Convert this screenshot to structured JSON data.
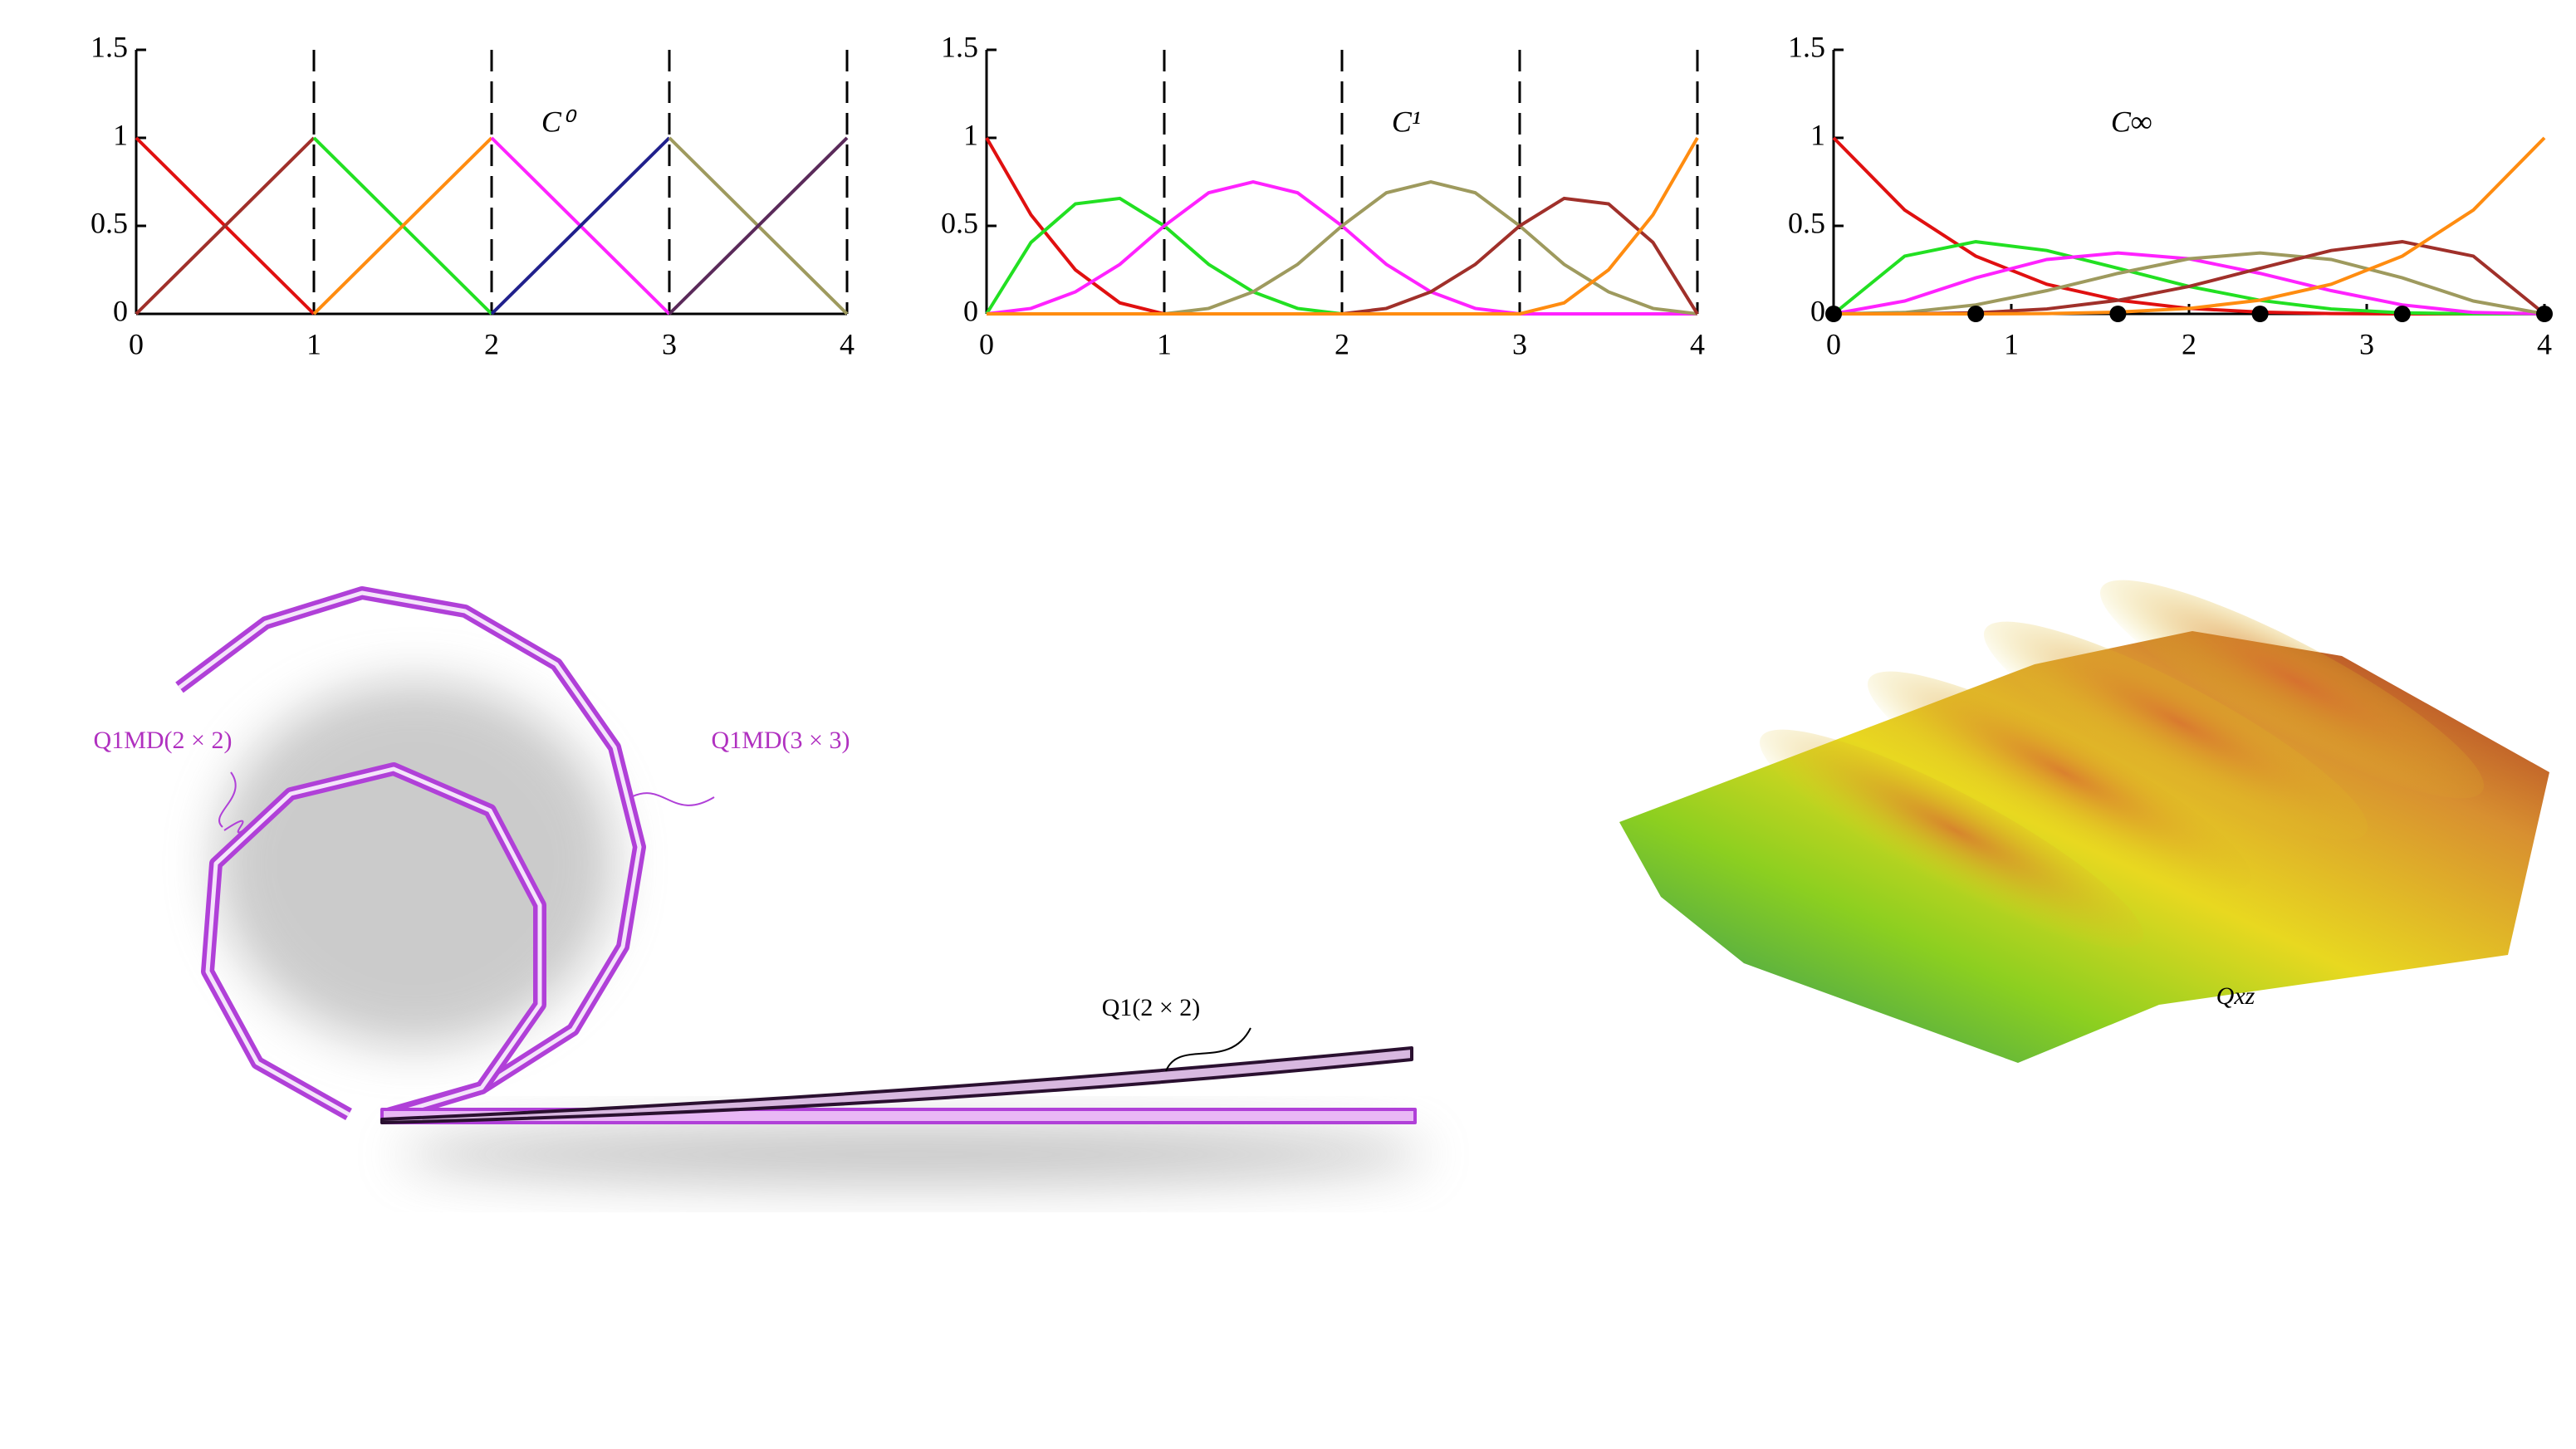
{
  "chart_data": [
    {
      "type": "line",
      "annotation": "C⁰",
      "x": [
        0,
        1,
        2,
        3,
        4
      ],
      "xlim": [
        0,
        4
      ],
      "ylim": [
        0,
        1.5
      ],
      "xticks": [
        0,
        1,
        2,
        3,
        4
      ],
      "yticks": [
        0,
        0.5,
        1,
        1.5
      ],
      "vlines": [
        1,
        2,
        3,
        4
      ],
      "series": [
        {
          "color": "#e01010",
          "values": [
            1,
            0,
            null,
            null,
            null
          ]
        },
        {
          "color": "#a0302a",
          "values": [
            0,
            1,
            null,
            null,
            null
          ]
        },
        {
          "color": "#22e022",
          "values": [
            null,
            1,
            0,
            null,
            null
          ]
        },
        {
          "color": "#ff8c10",
          "values": [
            null,
            0,
            1,
            null,
            null
          ]
        },
        {
          "color": "#ff22ff",
          "values": [
            null,
            null,
            1,
            0,
            null
          ]
        },
        {
          "color": "#20208c",
          "values": [
            null,
            null,
            0,
            1,
            null
          ]
        },
        {
          "color": "#9e9a5e",
          "values": [
            null,
            null,
            null,
            1,
            0
          ]
        },
        {
          "color": "#5a2a5a",
          "values": [
            null,
            null,
            null,
            0,
            1
          ]
        }
      ]
    },
    {
      "type": "line",
      "annotation": "C¹",
      "x": [
        0,
        0.25,
        0.5,
        0.75,
        1,
        1.25,
        1.5,
        1.75,
        2,
        2.25,
        2.5,
        2.75,
        3,
        3.25,
        3.5,
        3.75,
        4
      ],
      "xlim": [
        0,
        4
      ],
      "ylim": [
        0,
        1.5
      ],
      "xticks": [
        0,
        1,
        2,
        3,
        4
      ],
      "yticks": [
        0,
        0.5,
        1,
        1.5
      ],
      "vlines": [
        1,
        2,
        3,
        4
      ],
      "series": [
        {
          "color": "#e01010",
          "values": [
            1,
            0.5625,
            0.25,
            0.0625,
            0,
            0,
            0,
            0,
            0,
            0,
            0,
            0,
            0,
            0,
            0,
            0,
            0
          ]
        },
        {
          "color": "#22e022",
          "values": [
            0,
            0.406,
            0.625,
            0.656,
            0.5,
            0.281,
            0.125,
            0.031,
            0,
            0,
            0,
            0,
            0,
            0,
            0,
            0,
            0
          ]
        },
        {
          "color": "#ff22ff",
          "values": [
            0,
            0.031,
            0.125,
            0.281,
            0.5,
            0.688,
            0.75,
            0.688,
            0.5,
            0.281,
            0.125,
            0.031,
            0,
            0,
            0,
            0,
            0
          ]
        },
        {
          "color": "#9e9a5e",
          "values": [
            0,
            0,
            0,
            0,
            0,
            0.031,
            0.125,
            0.281,
            0.5,
            0.688,
            0.75,
            0.688,
            0.5,
            0.281,
            0.125,
            0.031,
            0
          ]
        },
        {
          "color": "#a0302a",
          "values": [
            0,
            0,
            0,
            0,
            0,
            0,
            0,
            0,
            0,
            0.031,
            0.125,
            0.281,
            0.5,
            0.656,
            0.625,
            0.406,
            0
          ]
        },
        {
          "color": "#ff8c10",
          "values": [
            0,
            0,
            0,
            0,
            0,
            0,
            0,
            0,
            0,
            0,
            0,
            0,
            0,
            0.0625,
            0.25,
            0.5625,
            1
          ]
        }
      ]
    },
    {
      "type": "line",
      "annotation": "C∞",
      "x": [
        0,
        0.4,
        0.8,
        1.2,
        1.6,
        2,
        2.4,
        2.8,
        3.2,
        3.6,
        4
      ],
      "xlim": [
        0,
        4
      ],
      "ylim": [
        0,
        1.5
      ],
      "xticks": [
        0,
        1,
        2,
        3,
        4
      ],
      "yticks": [
        0,
        0.5,
        1,
        1.5
      ],
      "markers": {
        "color": "#000000",
        "x": [
          0,
          0.8,
          1.6,
          2.4,
          3.2,
          4
        ],
        "values": [
          0,
          0,
          0,
          0,
          0,
          0
        ]
      },
      "series": [
        {
          "color": "#e01010",
          "values": [
            1,
            0.59,
            0.328,
            0.168,
            0.078,
            0.031,
            0.01,
            0.002,
            0,
            0,
            0
          ]
        },
        {
          "color": "#22e022",
          "values": [
            0,
            0.328,
            0.41,
            0.36,
            0.259,
            0.156,
            0.077,
            0.028,
            0.006,
            0,
            0
          ]
        },
        {
          "color": "#ff22ff",
          "values": [
            0,
            0.073,
            0.205,
            0.309,
            0.346,
            0.313,
            0.23,
            0.132,
            0.051,
            0.008,
            0
          ]
        },
        {
          "color": "#9e9a5e",
          "values": [
            0,
            0.008,
            0.051,
            0.132,
            0.23,
            0.313,
            0.346,
            0.309,
            0.205,
            0.073,
            0
          ]
        },
        {
          "color": "#a0302a",
          "values": [
            0,
            0,
            0.006,
            0.028,
            0.077,
            0.156,
            0.259,
            0.36,
            0.41,
            0.328,
            0
          ]
        },
        {
          "color": "#ff8c10",
          "values": [
            0,
            0,
            0,
            0.002,
            0.01,
            0.031,
            0.078,
            0.168,
            0.328,
            0.59,
            1
          ]
        }
      ]
    }
  ],
  "illustration": {
    "labels": [
      "Q1MD(2 × 2)",
      "Q1MD(3 × 3)",
      "Q1(2 × 2)",
      "Qxz"
    ]
  }
}
